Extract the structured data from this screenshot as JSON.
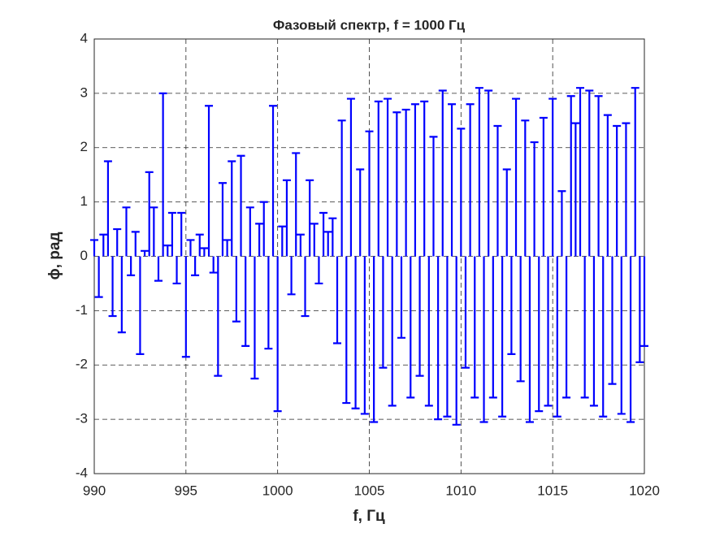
{
  "chart_data": {
    "type": "stem",
    "title": "Фазовый спектр, f = 1000 Гц",
    "xlabel": "f, Гц",
    "ylabel": "ϕ, рад",
    "x": [
      990,
      990.25,
      990.5,
      990.75,
      991,
      991.25,
      991.5,
      991.75,
      992,
      992.25,
      992.5,
      992.75,
      993,
      993.25,
      993.5,
      993.75,
      994,
      994.25,
      994.5,
      994.75,
      995,
      995.25,
      995.5,
      995.75,
      996,
      996.25,
      996.5,
      996.75,
      997,
      997.25,
      997.5,
      997.75,
      998,
      998.25,
      998.5,
      998.75,
      999,
      999.25,
      999.5,
      999.75,
      1000,
      1000.25,
      1000.5,
      1000.75,
      1001,
      1001.25,
      1001.5,
      1001.75,
      1002,
      1002.25,
      1002.5,
      1002.75,
      1003,
      1003.25,
      1003.5,
      1003.75,
      1004,
      1004.25,
      1004.5,
      1004.75,
      1005,
      1005.25,
      1005.5,
      1005.75,
      1006,
      1006.25,
      1006.5,
      1006.75,
      1007,
      1007.25,
      1007.5,
      1007.75,
      1008,
      1008.25,
      1008.5,
      1008.75,
      1009,
      1009.25,
      1009.5,
      1009.75,
      1010,
      1010.25,
      1010.5,
      1010.75,
      1011,
      1011.25,
      1011.5,
      1011.75,
      1012,
      1012.25,
      1012.5,
      1012.75,
      1013,
      1013.25,
      1013.5,
      1013.75,
      1014,
      1014.25,
      1014.5,
      1014.75,
      1015,
      1015.25,
      1015.5,
      1015.75,
      1016,
      1016.25,
      1016.5,
      1016.75,
      1017,
      1017.25,
      1017.5,
      1017.75,
      1018,
      1018.25,
      1018.5,
      1018.75,
      1019,
      1019.25,
      1019.5,
      1019.75,
      1020
    ],
    "series": [
      {
        "color": "#0000ff",
        "values": [
          0.3,
          -0.75,
          0.4,
          1.75,
          -1.1,
          0.5,
          -1.4,
          0.9,
          -0.35,
          0.45,
          -1.8,
          0.1,
          1.55,
          0.9,
          -0.45,
          3.0,
          0.2,
          0.8,
          -0.5,
          0.8,
          -1.85,
          0.3,
          -0.35,
          0.4,
          0.15,
          2.77,
          -0.3,
          -2.2,
          1.35,
          0.3,
          1.75,
          -1.2,
          1.85,
          -1.65,
          0.9,
          -2.25,
          0.6,
          1.0,
          -1.7,
          2.77,
          -2.85,
          0.55,
          1.4,
          -0.7,
          1.9,
          0.4,
          -1.1,
          1.4,
          0.6,
          -0.5,
          0.8,
          0.45,
          0.7,
          -1.6,
          2.5,
          -2.7,
          2.9,
          -2.8,
          1.6,
          -2.9,
          2.3,
          -3.05,
          2.85,
          -2.05,
          2.9,
          -2.75,
          2.65,
          -1.5,
          2.7,
          -2.6,
          2.8,
          -2.2,
          2.85,
          -2.75,
          2.2,
          -3.0,
          3.05,
          -2.95,
          2.8,
          -3.1,
          2.35,
          -2.05,
          2.8,
          -2.6,
          3.1,
          -3.05,
          3.05,
          -2.6,
          2.4,
          -2.95,
          1.6,
          -1.8,
          2.9,
          -2.3,
          2.5,
          -3.05,
          2.1,
          -2.85,
          2.55,
          -2.75,
          2.9,
          -2.95,
          1.2,
          -2.6,
          2.95,
          2.45,
          3.1,
          -2.6,
          3.05,
          -2.75,
          2.95,
          -2.95,
          2.6,
          -2.35,
          2.4,
          -2.9,
          2.45,
          -3.05,
          3.1,
          -1.95,
          -1.65
        ]
      }
    ],
    "xlim": [
      990,
      1020
    ],
    "ylim": [
      -4,
      4
    ],
    "xticks": [
      990,
      995,
      1000,
      1005,
      1010,
      1015,
      1020
    ],
    "yticks": [
      -4,
      -3,
      -2,
      -1,
      0,
      1,
      2,
      3,
      4
    ],
    "grid": true
  }
}
